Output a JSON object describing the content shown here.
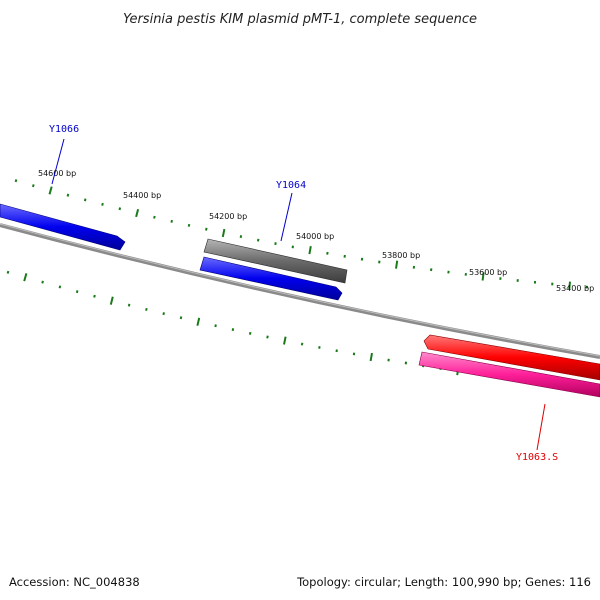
{
  "title": "Yersinia pestis KIM plasmid pMT-1, complete sequence",
  "footer": {
    "accession": "Accession: NC_004838",
    "summary": "Topology: circular; Length: 100,990 bp; Genes: 116"
  },
  "ticks": {
    "outer_labels": [
      "54600 bp",
      "54400 bp",
      "54200 bp",
      "54000 bp",
      "53800 bp",
      "53600 bp",
      "53400 bp"
    ]
  },
  "genes": {
    "y1066": {
      "label": "Y1066",
      "color": "#0000cc",
      "feature_color": "#0a0adf"
    },
    "y1064": {
      "label": "Y1064",
      "color": "#0000cc",
      "feature_color": "#0a0adf",
      "pseudo_color": "#6e6e6e"
    },
    "y1063": {
      "label": "Y1063.S",
      "color": "#dd0000",
      "feature_color": "#ff0000",
      "second_color": "#ff1f99"
    }
  },
  "colors": {
    "backbone": "#8a8a8a",
    "ticks": "#1a7a1a"
  }
}
